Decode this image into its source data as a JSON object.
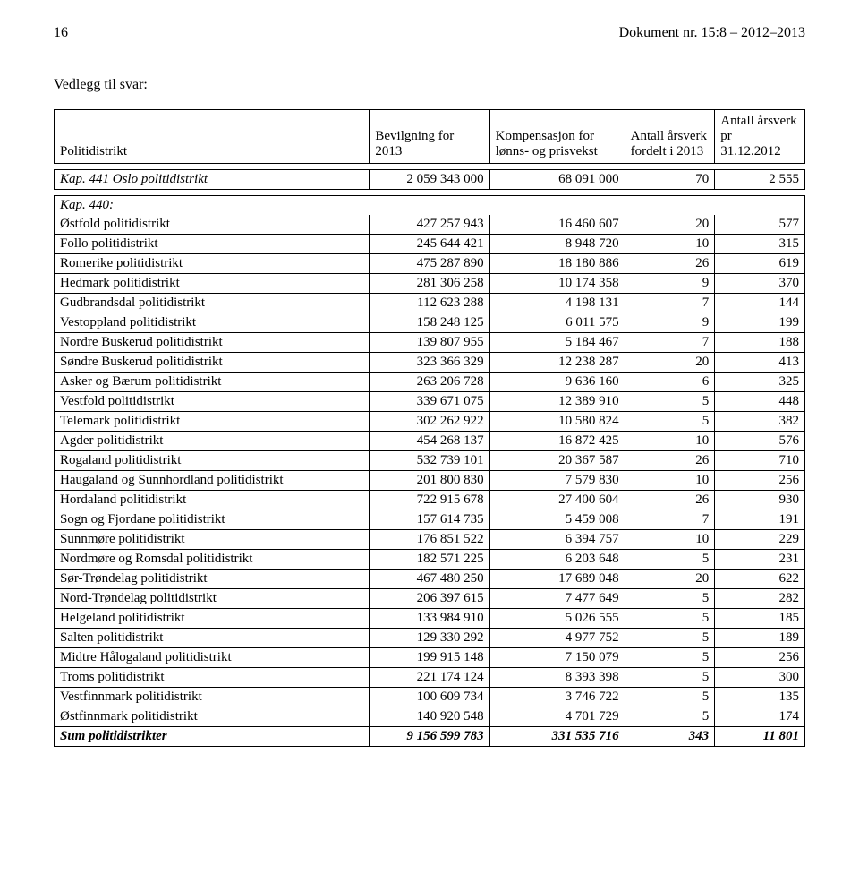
{
  "runningHead": {
    "pageNumber": "16",
    "docRef": "Dokument nr. 15:8 – 2012–2013"
  },
  "attachmentTitle": "Vedlegg til svar:",
  "headers": {
    "col1": "Politidistrikt",
    "col2a": "Bevilgning for",
    "col2b": "2013",
    "col3a": "Kompensasjon for",
    "col3b": "lønns- og prisvekst",
    "col4a": "Antall årsverk",
    "col4b": "fordelt i 2013",
    "col5a": "Antall årsverk pr",
    "col5b": "31.12.2012"
  },
  "kap441": {
    "label": "Kap. 441 Oslo politidistrikt",
    "bevilgning": "2 059 343 000",
    "kompensasjon": "68 091 000",
    "aarsverk2013": "70",
    "aarsverk2012": "2 555"
  },
  "kap440Label": "Kap. 440:",
  "rows": [
    {
      "name": "Østfold  politidistrikt",
      "b": "427 257 943",
      "k": "16 460 607",
      "a1": "20",
      "a2": "577"
    },
    {
      "name": "Follo politidistrikt",
      "b": "245 644 421",
      "k": "8 948 720",
      "a1": "10",
      "a2": "315"
    },
    {
      "name": "Romerike politidistrikt",
      "b": "475 287 890",
      "k": "18 180 886",
      "a1": "26",
      "a2": "619"
    },
    {
      "name": "Hedmark politidistrikt",
      "b": "281 306 258",
      "k": "10 174 358",
      "a1": "9",
      "a2": "370"
    },
    {
      "name": "Gudbrandsdal politidistrikt",
      "b": "112 623 288",
      "k": "4 198 131",
      "a1": "7",
      "a2": "144"
    },
    {
      "name": "Vestoppland politidistrikt",
      "b": "158 248 125",
      "k": "6 011 575",
      "a1": "9",
      "a2": "199"
    },
    {
      "name": "Nordre Buskerud politidistrikt",
      "b": "139 807 955",
      "k": "5 184 467",
      "a1": "7",
      "a2": "188"
    },
    {
      "name": "Søndre Buskerud politidistrikt",
      "b": "323 366 329",
      "k": "12 238 287",
      "a1": "20",
      "a2": "413"
    },
    {
      "name": "Asker og Bærum politidistrikt",
      "b": "263 206 728",
      "k": "9 636 160",
      "a1": "6",
      "a2": "325"
    },
    {
      "name": "Vestfold politidistrikt",
      "b": "339 671 075",
      "k": "12 389 910",
      "a1": "5",
      "a2": "448"
    },
    {
      "name": "Telemark politidistrikt",
      "b": "302 262 922",
      "k": "10 580 824",
      "a1": "5",
      "a2": "382"
    },
    {
      "name": "Agder politidistrikt",
      "b": "454 268 137",
      "k": "16 872 425",
      "a1": "10",
      "a2": "576"
    },
    {
      "name": "Rogaland politidistrikt",
      "b": "532 739 101",
      "k": "20 367 587",
      "a1": "26",
      "a2": "710"
    },
    {
      "name": "Haugaland og Sunnhordland politidistrikt",
      "b": "201 800 830",
      "k": "7 579 830",
      "a1": "10",
      "a2": "256"
    },
    {
      "name": "Hordaland politidistrikt",
      "b": "722 915 678",
      "k": "27 400 604",
      "a1": "26",
      "a2": "930"
    },
    {
      "name": "Sogn og Fjordane politidistrikt",
      "b": "157 614 735",
      "k": "5 459 008",
      "a1": "7",
      "a2": "191"
    },
    {
      "name": "Sunnmøre politidistrikt",
      "b": "176 851 522",
      "k": "6 394 757",
      "a1": "10",
      "a2": "229"
    },
    {
      "name": "Nordmøre og Romsdal politidistrikt",
      "b": "182 571 225",
      "k": "6 203 648",
      "a1": "5",
      "a2": "231"
    },
    {
      "name": "Sør-Trøndelag politidistrikt",
      "b": "467 480 250",
      "k": "17 689 048",
      "a1": "20",
      "a2": "622"
    },
    {
      "name": "Nord-Trøndelag politidistrikt",
      "b": "206 397 615",
      "k": "7 477 649",
      "a1": "5",
      "a2": "282"
    },
    {
      "name": "Helgeland politidistrikt",
      "b": "133 984 910",
      "k": "5 026 555",
      "a1": "5",
      "a2": "185"
    },
    {
      "name": "Salten politidistrikt",
      "b": "129 330 292",
      "k": "4 977 752",
      "a1": "5",
      "a2": "189"
    },
    {
      "name": "Midtre Hålogaland politidistrikt",
      "b": "199 915 148",
      "k": "7 150 079",
      "a1": "5",
      "a2": "256"
    },
    {
      "name": "Troms politidistrikt",
      "b": "221 174 124",
      "k": "8 393 398",
      "a1": "5",
      "a2": "300"
    },
    {
      "name": "Vestfinnmark politidistrikt",
      "b": "100 609 734",
      "k": "3 746 722",
      "a1": "5",
      "a2": "135"
    },
    {
      "name": "Østfinnmark politidistrikt",
      "b": "140 920 548",
      "k": "4 701 729",
      "a1": "5",
      "a2": "174"
    }
  ],
  "sum": {
    "name": "Sum politidistrikter",
    "b": "9 156 599 783",
    "k": "331 535 716",
    "a1": "343",
    "a2": "11 801"
  }
}
